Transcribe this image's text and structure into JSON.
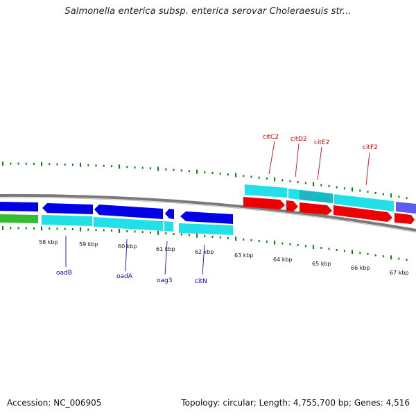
{
  "title": "Salmonella enterica subsp. enterica serovar Choleraesuis str...",
  "footer": {
    "accession": "Accession: NC_006905",
    "summary": "Topology: circular; Length: 4,755,700 bp; Genes: 4,516"
  },
  "colors": {
    "tick": "#0f7a0f",
    "backbone": "#7a7a7a",
    "blue_gene": "#0000e6",
    "cyan_gene": "#22e0e8",
    "red_gene": "#ee0000",
    "green_gene": "#33bb33",
    "gene_label_blue": "#0000cc",
    "gene_label_red": "#cc0000"
  },
  "ruler": {
    "labels": [
      {
        "text": "58 kbp",
        "kbp": 58
      },
      {
        "text": "59 kbp",
        "kbp": 59
      },
      {
        "text": "60 kbp",
        "kbp": 60
      },
      {
        "text": "61 kbp",
        "kbp": 61
      },
      {
        "text": "62 kbp",
        "kbp": 62
      },
      {
        "text": "63 kbp",
        "kbp": 63
      },
      {
        "text": "64 kbp",
        "kbp": 64
      },
      {
        "text": "65 kbp",
        "kbp": 65
      },
      {
        "text": "66 kbp",
        "kbp": 66
      },
      {
        "text": "67 kbp",
        "kbp": 67
      }
    ]
  },
  "genes": [
    {
      "name": "oadB",
      "strand": "reverse",
      "color": "blue"
    },
    {
      "name": "oadA",
      "strand": "reverse",
      "color": "blue"
    },
    {
      "name": "oag3",
      "strand": "reverse",
      "color": "blue"
    },
    {
      "name": "citN",
      "strand": "reverse",
      "color": "blue"
    },
    {
      "name": "citC2",
      "strand": "forward",
      "color": "red"
    },
    {
      "name": "citD2",
      "strand": "forward",
      "color": "red"
    },
    {
      "name": "citE2",
      "strand": "forward",
      "color": "red"
    },
    {
      "name": "citF2",
      "strand": "forward",
      "color": "red"
    }
  ]
}
